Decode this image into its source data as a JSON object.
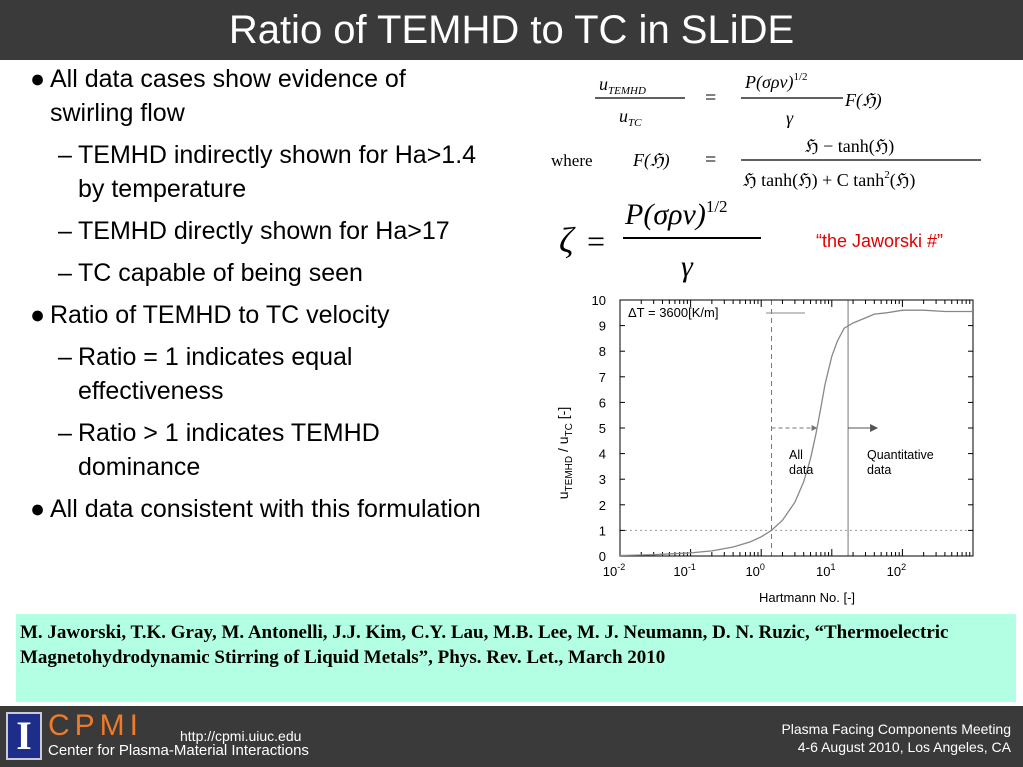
{
  "title": "Ratio of TEMHD to TC in SLiDE",
  "bullet_mark": "●",
  "dash_mark": "–",
  "bullets": [
    {
      "text": "All data cases show evidence of swirling flow",
      "sub": [
        "TEMHD indirectly shown for Ha>1.4 by temperature",
        "TEMHD directly shown for Ha>17",
        "TC capable of being seen"
      ]
    },
    {
      "text": "Ratio of TEMHD to TC velocity",
      "sub": [
        "Ratio = 1 indicates equal effectiveness",
        "Ratio > 1 indicates TEMHD dominance"
      ]
    },
    {
      "text": "All data consistent with this formulation",
      "sub": []
    }
  ],
  "equations": {
    "lhs_num": "u",
    "lhs_num_sub": "TEMHD",
    "lhs_den": "u",
    "lhs_den_sub": "TC",
    "equals": "=",
    "rhs1_num": "P(σρν)",
    "rhs1_exp": "1/2",
    "rhs1_den": "γ",
    "rhs1_suffix": "F(ℌ)",
    "where_label": "where",
    "f_label": "F(ℌ)",
    "rhs2_num": "ℌ − tanh(ℌ)",
    "rhs2_den": "ℌ tanh(ℌ) + C tanh",
    "rhs2_den_exp": "2",
    "rhs2_den_tail": "(ℌ)",
    "zeta": "ζ",
    "zeta_num": "P(σρν)",
    "zeta_exp": "1/2",
    "zeta_den": "γ"
  },
  "jaworski_label": "“the Jaworski #”",
  "chart_data": {
    "type": "line",
    "x_scale": "log",
    "xlim": [
      0.01,
      1000
    ],
    "ylim": [
      0,
      10
    ],
    "xlabel": "Hartmann No. [-]",
    "ylabel_main": "u",
    "ylabel_sub1": "TEMHD",
    "ylabel_mid": " / u",
    "ylabel_sub2": "TC",
    "ylabel_tail": " [-]",
    "x_ticks": [
      {
        "value": 0.01,
        "base": "10",
        "exp": "-2"
      },
      {
        "value": 0.1,
        "base": "10",
        "exp": "-1"
      },
      {
        "value": 1,
        "base": "10",
        "exp": "0"
      },
      {
        "value": 10,
        "base": "10",
        "exp": "1"
      },
      {
        "value": 100,
        "base": "10",
        "exp": "2"
      }
    ],
    "y_ticks": [
      0,
      1,
      2,
      3,
      4,
      5,
      6,
      7,
      8,
      9,
      10
    ],
    "legend_label": "ΔT = 3600[K/m]",
    "series": [
      {
        "name": "ΔT = 3600[K/m]",
        "x": [
          0.01,
          0.03,
          0.1,
          0.2,
          0.4,
          0.7,
          1,
          1.4,
          2,
          3,
          4,
          5,
          6,
          7,
          8,
          10,
          12,
          15,
          20,
          30,
          40,
          60,
          100,
          200,
          400,
          1000
        ],
        "y": [
          0.02,
          0.05,
          0.12,
          0.2,
          0.35,
          0.55,
          0.75,
          1.0,
          1.4,
          2.1,
          2.9,
          3.8,
          4.8,
          5.8,
          6.7,
          7.8,
          8.4,
          8.9,
          9.1,
          9.3,
          9.45,
          9.5,
          9.6,
          9.6,
          9.55,
          9.55
        ]
      }
    ],
    "ref_line_y": 1,
    "vlines": [
      {
        "x": 1.4,
        "style": "dashed"
      },
      {
        "x": 17,
        "style": "solid"
      }
    ],
    "annotations": {
      "all_data": "All data",
      "quantitative": "Quantitative data"
    }
  },
  "citation": "M. Jaworski,  T.K. Gray,  M. Antonelli,  J.J. Kim, C.Y. Lau,  M.B. Lee, M. J. Neumann, D. N. Ruzic, “Thermoelectric Magnetohydrodynamic Stirring of Liquid Metals”, Phys. Rev. Let., March 2010",
  "footer": {
    "logo_letter": "I",
    "cpmi": "CPMI",
    "cpmi_full": "Center for Plasma-Material Interactions",
    "url": "http://cpmi.uiuc.edu",
    "meeting_line1": "Plasma Facing Components Meeting",
    "meeting_line2": "4-6 August 2010, Los Angeles, CA",
    "accent_color": "#ee7a2a",
    "logo_color": "#1f2d8a"
  }
}
